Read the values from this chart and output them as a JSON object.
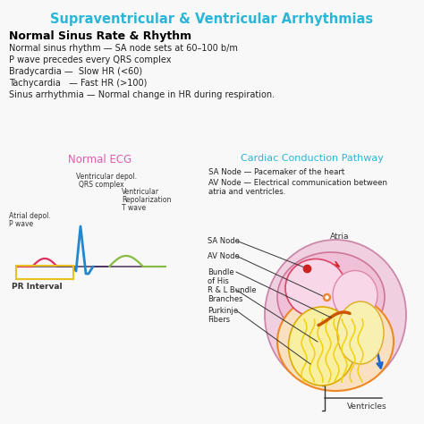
{
  "title": "Supraventricular & Ventricular Arrhythmias",
  "title_color": "#29b6d8",
  "background_color": "#f5f5f5",
  "section1_header": "Normal Sinus Rate & Rhythm",
  "section1_lines": [
    "Normal sinus rhythm — SA node sets at 60–100 b/m",
    "P wave precedes every QRS complex",
    "Bradycardia —  Slow HR (<60)",
    "Tachycardia   — Fast HR (>100)",
    "Sinus arrhythmia — Normal change in HR during respiration."
  ],
  "ecg_label": "Normal ECG",
  "ecg_label_color": "#e05cb0",
  "pathway_label": "Cardiac Conduction Pathway",
  "pathway_label_color": "#29b6d8",
  "sa_line": "SA Node — Pacemaker of the heart",
  "av_line": "AV Node — Electrical communication between\natria and ventricles.",
  "heart_labels": [
    "Atria",
    "SA Node",
    "AV Node",
    "Bundle\nof His",
    "R & L Bundle\nBranches",
    "Purkinje\nFibers",
    "Ventricles"
  ]
}
